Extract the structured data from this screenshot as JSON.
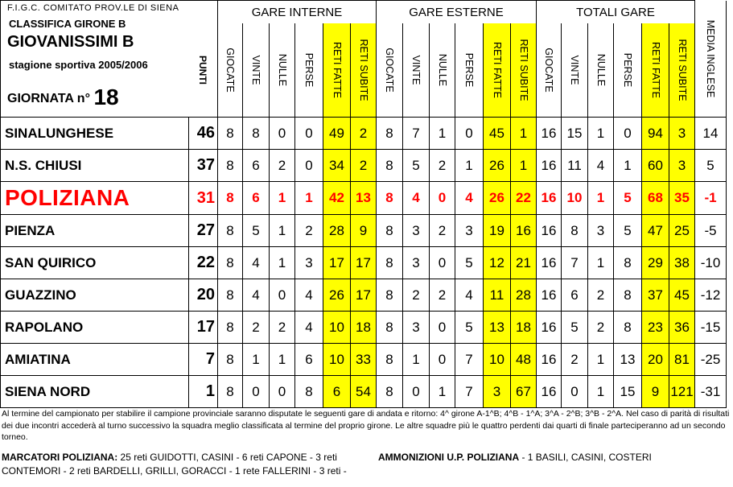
{
  "header": {
    "line1": "F.I.G.C. COMITATO PROV.LE DI SIENA",
    "line2": "CLASSIFICA GIRONE B",
    "line3": "GIOVANISSIMI B",
    "line4": "stagione sportiva 2005/2006",
    "giornata_label": "GIORNATA n°",
    "giornata_num": "18"
  },
  "groups": {
    "interne": "GARE INTERNE",
    "esterne": "GARE ESTERNE",
    "totali": "TOTALI GARE"
  },
  "col_labels": {
    "punti": "PUNTI",
    "giocate": "GIOCATE",
    "vinte": "VINTE",
    "nulle": "NULLE",
    "perse": "PERSE",
    "reti_fatte": "RETI FATTE",
    "reti_subite": "RETI SUBITE",
    "media": "MEDIA INGLESE"
  },
  "rows": [
    {
      "team": "SINALUNGHESE",
      "punti": "46",
      "i": [
        "8",
        "8",
        "0",
        "0",
        "49",
        "2"
      ],
      "e": [
        "8",
        "7",
        "1",
        "0",
        "45",
        "1"
      ],
      "t": [
        "16",
        "15",
        "1",
        "0",
        "94",
        "3"
      ],
      "media": "14",
      "highlight": false
    },
    {
      "team": "N.S. CHIUSI",
      "punti": "37",
      "i": [
        "8",
        "6",
        "2",
        "0",
        "34",
        "2"
      ],
      "e": [
        "8",
        "5",
        "2",
        "1",
        "26",
        "1"
      ],
      "t": [
        "16",
        "11",
        "4",
        "1",
        "60",
        "3"
      ],
      "media": "5",
      "highlight": false
    },
    {
      "team": "POLIZIANA",
      "punti": "31",
      "i": [
        "8",
        "6",
        "1",
        "1",
        "42",
        "13"
      ],
      "e": [
        "8",
        "4",
        "0",
        "4",
        "26",
        "22"
      ],
      "t": [
        "16",
        "10",
        "1",
        "5",
        "68",
        "35"
      ],
      "media": "-1",
      "highlight": true
    },
    {
      "team": "PIENZA",
      "punti": "27",
      "i": [
        "8",
        "5",
        "1",
        "2",
        "28",
        "9"
      ],
      "e": [
        "8",
        "3",
        "2",
        "3",
        "19",
        "16"
      ],
      "t": [
        "16",
        "8",
        "3",
        "5",
        "47",
        "25"
      ],
      "media": "-5",
      "highlight": false
    },
    {
      "team": "SAN QUIRICO",
      "punti": "22",
      "i": [
        "8",
        "4",
        "1",
        "3",
        "17",
        "17"
      ],
      "e": [
        "8",
        "3",
        "0",
        "5",
        "12",
        "21"
      ],
      "t": [
        "16",
        "7",
        "1",
        "8",
        "29",
        "38"
      ],
      "media": "-10",
      "highlight": false
    },
    {
      "team": "GUAZZINO",
      "punti": "20",
      "i": [
        "8",
        "4",
        "0",
        "4",
        "26",
        "17"
      ],
      "e": [
        "8",
        "2",
        "2",
        "4",
        "11",
        "28"
      ],
      "t": [
        "16",
        "6",
        "2",
        "8",
        "37",
        "45"
      ],
      "media": "-12",
      "highlight": false
    },
    {
      "team": "RAPOLANO",
      "punti": "17",
      "i": [
        "8",
        "2",
        "2",
        "4",
        "10",
        "18"
      ],
      "e": [
        "8",
        "3",
        "0",
        "5",
        "13",
        "18"
      ],
      "t": [
        "16",
        "5",
        "2",
        "8",
        "23",
        "36"
      ],
      "media": "-15",
      "highlight": false
    },
    {
      "team": "AMIATINA",
      "punti": "7",
      "i": [
        "8",
        "1",
        "1",
        "6",
        "10",
        "33"
      ],
      "e": [
        "8",
        "1",
        "0",
        "7",
        "10",
        "48"
      ],
      "t": [
        "16",
        "2",
        "1",
        "13",
        "20",
        "81"
      ],
      "media": "-25",
      "highlight": false
    },
    {
      "team": "SIENA NORD",
      "punti": "1",
      "i": [
        "8",
        "0",
        "0",
        "8",
        "6",
        "54"
      ],
      "e": [
        "8",
        "0",
        "1",
        "7",
        "3",
        "67"
      ],
      "t": [
        "16",
        "0",
        "1",
        "15",
        "9",
        "121"
      ],
      "media": "-31",
      "highlight": false
    }
  ],
  "notes": "Al termine del campionato per stabilire il campione provinciale saranno disputate le seguenti gare di andata e ritorno: 4^ girone A-1^B; 4^B - 1^A; 3^A - 2^B; 3^B - 2^A. Nel caso di parità di risultati dei due incontri accederà al turno successivo la squadra meglio classificata al termine del proprio girone. Le altre squadre più le quattro perdenti dai quarti di finale parteciperanno ad un secondo torneo.",
  "marcatori": {
    "label": "MARCATORI POLIZIANA:",
    "text": " 25 reti GUIDOTTI, CASINI - 6 reti CAPONE - 3 reti CONTEMORI - 2 reti BARDELLI, GRILLI, GORACCI - 1 rete FALLERINI - 3 reti -"
  },
  "ammonizioni": {
    "label": "AMMONIZIONI U.P. POLIZIANA",
    "text": " - 1 BASILI, CASINI, COSTERI"
  },
  "colors": {
    "highlight_text": "#ff0000",
    "goals_fill": "#ffff00"
  }
}
